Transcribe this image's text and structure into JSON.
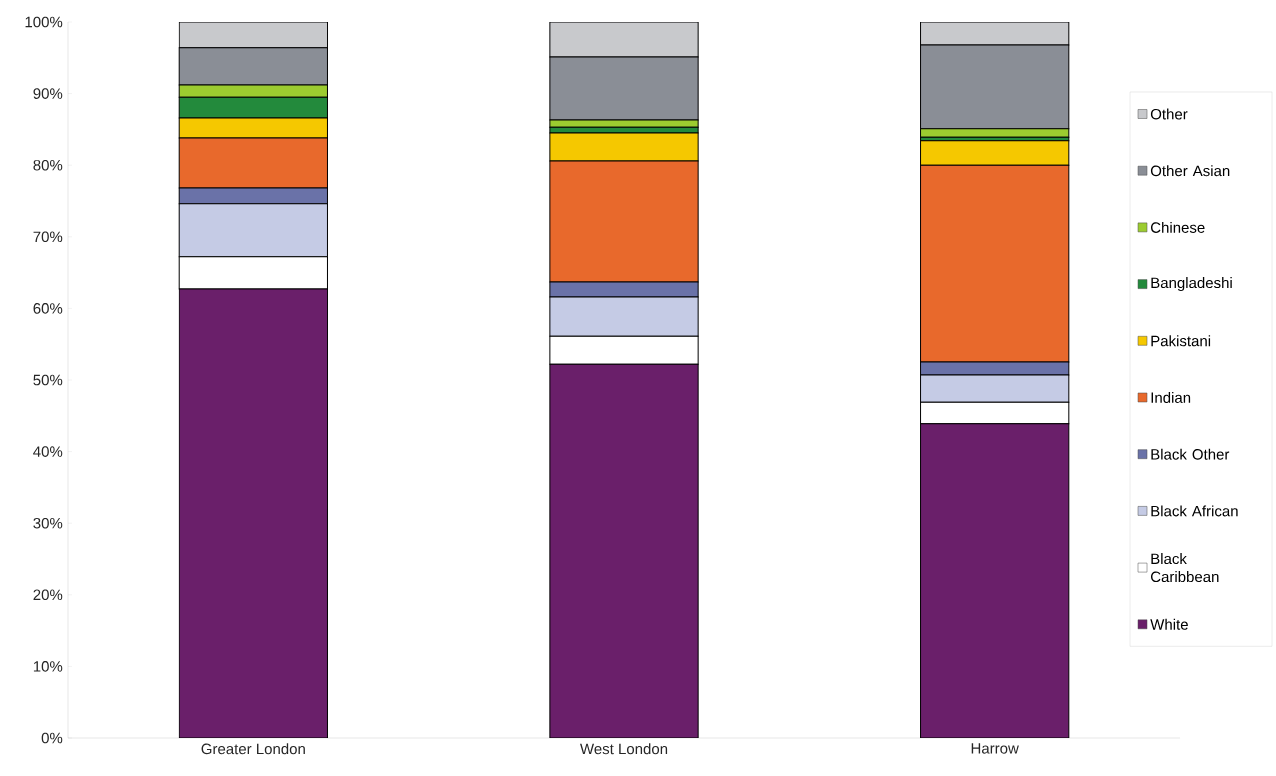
{
  "chart_data": {
    "type": "bar",
    "stacked": true,
    "categories": [
      "Greater London",
      "West London",
      "Harrow"
    ],
    "series": [
      {
        "name": "White",
        "color": "#6a1f6a",
        "values": [
          62.7,
          52.2,
          43.9
        ]
      },
      {
        "name": "Black Caribbean",
        "color": "#ffffff",
        "values": [
          4.5,
          3.9,
          3.0
        ]
      },
      {
        "name": "Black African",
        "color": "#c5cbe5",
        "values": [
          7.4,
          5.5,
          3.8
        ]
      },
      {
        "name": "Black Other",
        "color": "#6a72a8",
        "values": [
          2.2,
          2.1,
          1.8
        ]
      },
      {
        "name": "Indian",
        "color": "#e8692c",
        "values": [
          7.0,
          16.9,
          27.5
        ]
      },
      {
        "name": "Pakistani",
        "color": "#f5c800",
        "values": [
          2.8,
          3.9,
          3.4
        ]
      },
      {
        "name": "Bangladeshi",
        "color": "#238a3c",
        "values": [
          2.9,
          0.8,
          0.5
        ]
      },
      {
        "name": "Chinese",
        "color": "#9ccc30",
        "values": [
          1.7,
          1.0,
          1.2
        ]
      },
      {
        "name": "Other Asian",
        "color": "#8a8e96",
        "values": [
          5.2,
          8.8,
          11.7
        ]
      },
      {
        "name": "Other",
        "color": "#c8c9cc",
        "values": [
          3.6,
          4.9,
          3.2
        ]
      }
    ],
    "ylim": [
      0,
      100
    ],
    "yticks": [
      {
        "value": 0,
        "label": "0%"
      },
      {
        "value": 10,
        "label": "10%"
      },
      {
        "value": 20,
        "label": "20%"
      },
      {
        "value": 30,
        "label": "30%"
      },
      {
        "value": 40,
        "label": "40%"
      },
      {
        "value": 50,
        "label": "50%"
      },
      {
        "value": 60,
        "label": "60%"
      },
      {
        "value": 70,
        "label": "70%"
      },
      {
        "value": 80,
        "label": "80%"
      },
      {
        "value": 90,
        "label": "90%"
      },
      {
        "value": 100,
        "label": "100%"
      }
    ],
    "grid": false,
    "legend": "right"
  }
}
